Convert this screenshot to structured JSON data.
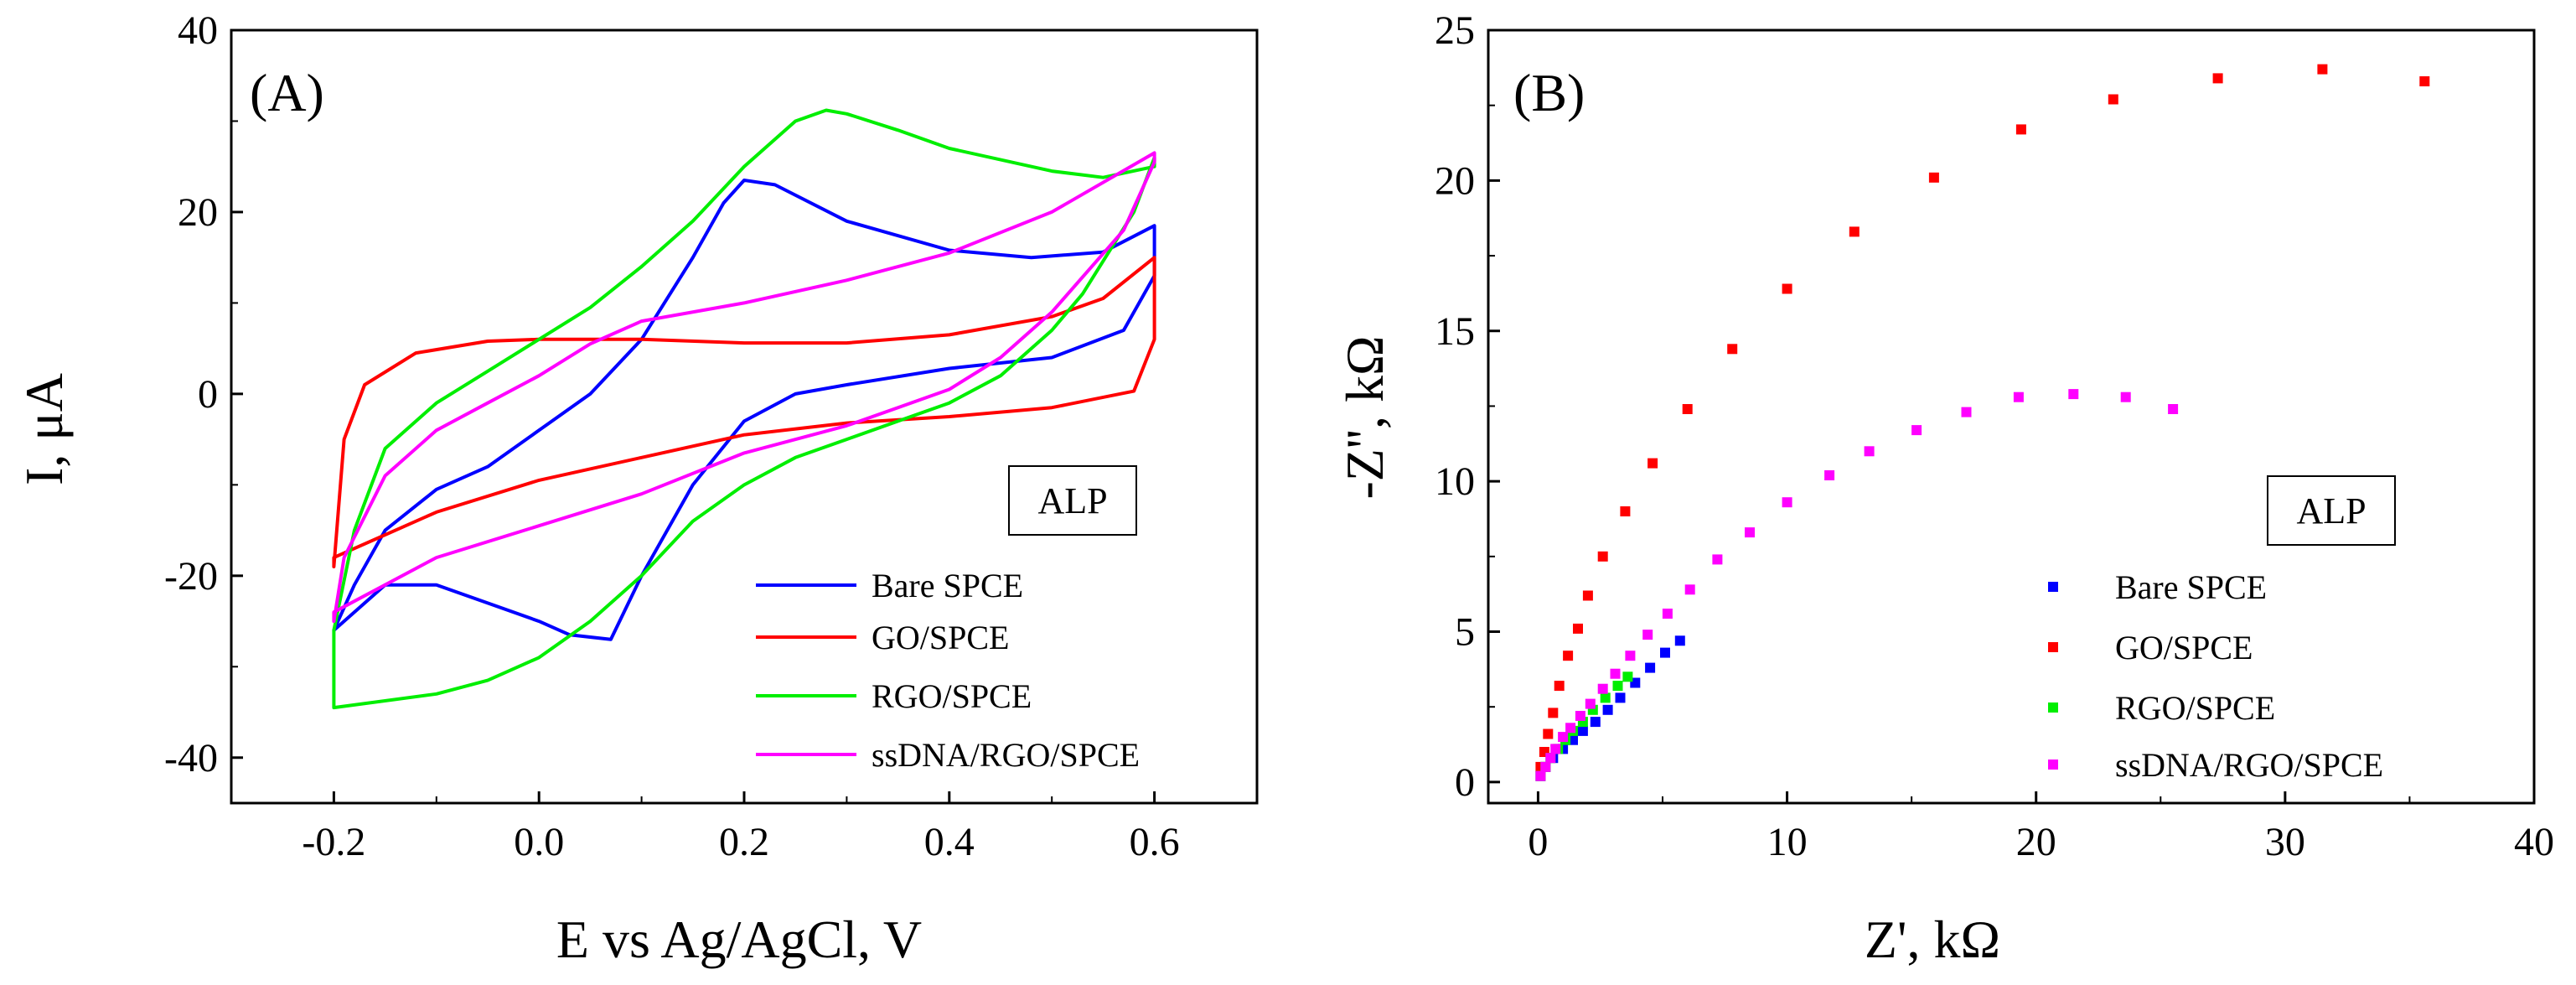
{
  "chart_data": [
    {
      "type": "line",
      "panel_label": "(A)",
      "xlabel": "E vs Ag/AgCl, V",
      "ylabel": "I, μA",
      "xlim": [
        -0.3,
        0.7
      ],
      "ylim": [
        -45,
        40
      ],
      "xticks": [
        -0.2,
        0.0,
        0.2,
        0.4,
        0.6
      ],
      "xtick_labels": [
        "-0.2",
        "0.0",
        "0.2",
        "0.4",
        "0.6"
      ],
      "yticks": [
        -40,
        -20,
        0,
        20,
        40
      ],
      "ytick_labels": [
        "-40",
        "-20",
        "0",
        "20",
        "40"
      ],
      "annotation": "ALP",
      "legend_position": "bottom-right",
      "series": [
        {
          "name": "Bare SPCE",
          "color": "#0000ff",
          "points": [
            [
              -0.2,
              -26
            ],
            [
              -0.18,
              -21
            ],
            [
              -0.15,
              -15
            ],
            [
              -0.1,
              -10.5
            ],
            [
              -0.05,
              -8
            ],
            [
              0.0,
              -4
            ],
            [
              0.05,
              0
            ],
            [
              0.1,
              6
            ],
            [
              0.15,
              15
            ],
            [
              0.18,
              21
            ],
            [
              0.2,
              23.5
            ],
            [
              0.23,
              23
            ],
            [
              0.3,
              19
            ],
            [
              0.4,
              15.8
            ],
            [
              0.48,
              15
            ],
            [
              0.55,
              15.6
            ],
            [
              0.6,
              18.5
            ],
            [
              0.6,
              13
            ],
            [
              0.57,
              7
            ],
            [
              0.5,
              4
            ],
            [
              0.4,
              2.8
            ],
            [
              0.3,
              1
            ],
            [
              0.25,
              0
            ],
            [
              0.2,
              -3
            ],
            [
              0.15,
              -10
            ],
            [
              0.1,
              -20
            ],
            [
              0.07,
              -27
            ],
            [
              0.03,
              -26.5
            ],
            [
              0.0,
              -25
            ],
            [
              -0.05,
              -23
            ],
            [
              -0.1,
              -21
            ],
            [
              -0.15,
              -21
            ],
            [
              -0.2,
              -26
            ]
          ]
        },
        {
          "name": "GO/SPCE",
          "color": "#ff0000",
          "points": [
            [
              -0.2,
              -19
            ],
            [
              -0.19,
              -5
            ],
            [
              -0.17,
              1
            ],
            [
              -0.12,
              4.5
            ],
            [
              -0.05,
              5.8
            ],
            [
              0.0,
              6
            ],
            [
              0.1,
              6
            ],
            [
              0.2,
              5.6
            ],
            [
              0.3,
              5.6
            ],
            [
              0.4,
              6.5
            ],
            [
              0.5,
              8.5
            ],
            [
              0.55,
              10.5
            ],
            [
              0.6,
              15
            ],
            [
              0.6,
              6
            ],
            [
              0.58,
              0.3
            ],
            [
              0.5,
              -1.5
            ],
            [
              0.4,
              -2.5
            ],
            [
              0.3,
              -3.2
            ],
            [
              0.2,
              -4.5
            ],
            [
              0.1,
              -7
            ],
            [
              0.0,
              -9.5
            ],
            [
              -0.1,
              -13
            ],
            [
              -0.2,
              -18
            ]
          ]
        },
        {
          "name": "RGO/SPCE",
          "color": "#00ee00",
          "points": [
            [
              -0.2,
              -34
            ],
            [
              -0.2,
              -26
            ],
            [
              -0.18,
              -15
            ],
            [
              -0.15,
              -6
            ],
            [
              -0.1,
              -1
            ],
            [
              -0.05,
              2.5
            ],
            [
              0.0,
              6
            ],
            [
              0.05,
              9.5
            ],
            [
              0.1,
              14
            ],
            [
              0.15,
              19
            ],
            [
              0.2,
              25
            ],
            [
              0.25,
              30
            ],
            [
              0.28,
              31.2
            ],
            [
              0.3,
              30.8
            ],
            [
              0.35,
              29
            ],
            [
              0.4,
              27
            ],
            [
              0.5,
              24.5
            ],
            [
              0.55,
              23.8
            ],
            [
              0.6,
              25
            ],
            [
              0.6,
              26
            ],
            [
              0.58,
              20
            ],
            [
              0.53,
              11
            ],
            [
              0.5,
              7
            ],
            [
              0.45,
              2
            ],
            [
              0.4,
              -1
            ],
            [
              0.35,
              -3
            ],
            [
              0.3,
              -5
            ],
            [
              0.25,
              -7
            ],
            [
              0.2,
              -10
            ],
            [
              0.15,
              -14
            ],
            [
              0.1,
              -20
            ],
            [
              0.05,
              -25
            ],
            [
              0.0,
              -29
            ],
            [
              -0.05,
              -31.5
            ],
            [
              -0.1,
              -33
            ],
            [
              -0.2,
              -34.5
            ]
          ]
        },
        {
          "name": "ssDNA/RGO/SPCE",
          "color": "#ff00ff",
          "points": [
            [
              -0.2,
              -25
            ],
            [
              -0.19,
              -18
            ],
            [
              -0.15,
              -9
            ],
            [
              -0.1,
              -4
            ],
            [
              -0.05,
              -1
            ],
            [
              0.0,
              2
            ],
            [
              0.05,
              5.5
            ],
            [
              0.1,
              8
            ],
            [
              0.2,
              10
            ],
            [
              0.3,
              12.5
            ],
            [
              0.4,
              15.5
            ],
            [
              0.5,
              20
            ],
            [
              0.6,
              26.5
            ],
            [
              0.6,
              25.5
            ],
            [
              0.57,
              18
            ],
            [
              0.5,
              9
            ],
            [
              0.45,
              4
            ],
            [
              0.4,
              0.5
            ],
            [
              0.35,
              -1.5
            ],
            [
              0.3,
              -3.5
            ],
            [
              0.2,
              -6.5
            ],
            [
              0.1,
              -11
            ],
            [
              0.0,
              -14.5
            ],
            [
              -0.1,
              -18
            ],
            [
              -0.2,
              -24
            ]
          ]
        }
      ]
    },
    {
      "type": "scatter",
      "panel_label": "(B)",
      "xlabel": "Z', kΩ",
      "ylabel": "-Z'', kΩ",
      "xlim": [
        -2,
        40
      ],
      "ylim": [
        -0.7,
        25
      ],
      "xticks": [
        0,
        10,
        20,
        30,
        40
      ],
      "xtick_labels": [
        "0",
        "10",
        "20",
        "30",
        "40"
      ],
      "yticks": [
        0,
        5,
        10,
        15,
        20,
        25
      ],
      "ytick_labels": [
        "0",
        "5",
        "10",
        "15",
        "20",
        "25"
      ],
      "annotation": "ALP",
      "legend_position": "bottom-right",
      "series": [
        {
          "name": "Bare SPCE",
          "color": "#0000ff",
          "points": [
            [
              0.1,
              0.2
            ],
            [
              0.3,
              0.5
            ],
            [
              0.6,
              0.8
            ],
            [
              1.0,
              1.1
            ],
            [
              1.4,
              1.4
            ],
            [
              1.8,
              1.7
            ],
            [
              2.3,
              2.0
            ],
            [
              2.8,
              2.4
            ],
            [
              3.3,
              2.8
            ],
            [
              3.9,
              3.3
            ],
            [
              4.5,
              3.8
            ],
            [
              5.1,
              4.3
            ],
            [
              5.7,
              4.7
            ]
          ]
        },
        {
          "name": "GO/SPCE",
          "color": "#ff0000",
          "points": [
            [
              0.1,
              0.5
            ],
            [
              0.25,
              1.0
            ],
            [
              0.4,
              1.6
            ],
            [
              0.6,
              2.3
            ],
            [
              0.85,
              3.2
            ],
            [
              1.2,
              4.2
            ],
            [
              1.6,
              5.1
            ],
            [
              2.0,
              6.2
            ],
            [
              2.6,
              7.5
            ],
            [
              3.5,
              9.0
            ],
            [
              4.6,
              10.6
            ],
            [
              6.0,
              12.4
            ],
            [
              7.8,
              14.4
            ],
            [
              10.0,
              16.4
            ],
            [
              12.7,
              18.3
            ],
            [
              15.9,
              20.1
            ],
            [
              19.4,
              21.7
            ],
            [
              23.1,
              22.7
            ],
            [
              27.3,
              23.4
            ],
            [
              31.5,
              23.7
            ],
            [
              35.6,
              23.3
            ]
          ]
        },
        {
          "name": "RGO/SPCE",
          "color": "#00ee00",
          "points": [
            [
              0.1,
              0.2
            ],
            [
              0.3,
              0.5
            ],
            [
              0.5,
              0.8
            ],
            [
              0.8,
              1.1
            ],
            [
              1.1,
              1.4
            ],
            [
              1.4,
              1.7
            ],
            [
              1.8,
              2.0
            ],
            [
              2.2,
              2.4
            ],
            [
              2.7,
              2.8
            ],
            [
              3.2,
              3.2
            ],
            [
              3.6,
              3.5
            ]
          ]
        },
        {
          "name": "ssDNA/RGO/SPCE",
          "color": "#ff00ff",
          "points": [
            [
              0.1,
              0.2
            ],
            [
              0.3,
              0.5
            ],
            [
              0.5,
              0.8
            ],
            [
              0.7,
              1.1
            ],
            [
              1.0,
              1.5
            ],
            [
              1.3,
              1.8
            ],
            [
              1.7,
              2.2
            ],
            [
              2.1,
              2.6
            ],
            [
              2.6,
              3.1
            ],
            [
              3.1,
              3.6
            ],
            [
              3.7,
              4.2
            ],
            [
              4.4,
              4.9
            ],
            [
              5.2,
              5.6
            ],
            [
              6.1,
              6.4
            ],
            [
              7.2,
              7.4
            ],
            [
              8.5,
              8.3
            ],
            [
              10.0,
              9.3
            ],
            [
              11.7,
              10.2
            ],
            [
              13.3,
              11.0
            ],
            [
              15.2,
              11.7
            ],
            [
              17.2,
              12.3
            ],
            [
              19.3,
              12.8
            ],
            [
              21.5,
              12.9
            ],
            [
              23.6,
              12.8
            ],
            [
              25.5,
              12.4
            ]
          ]
        }
      ]
    }
  ]
}
